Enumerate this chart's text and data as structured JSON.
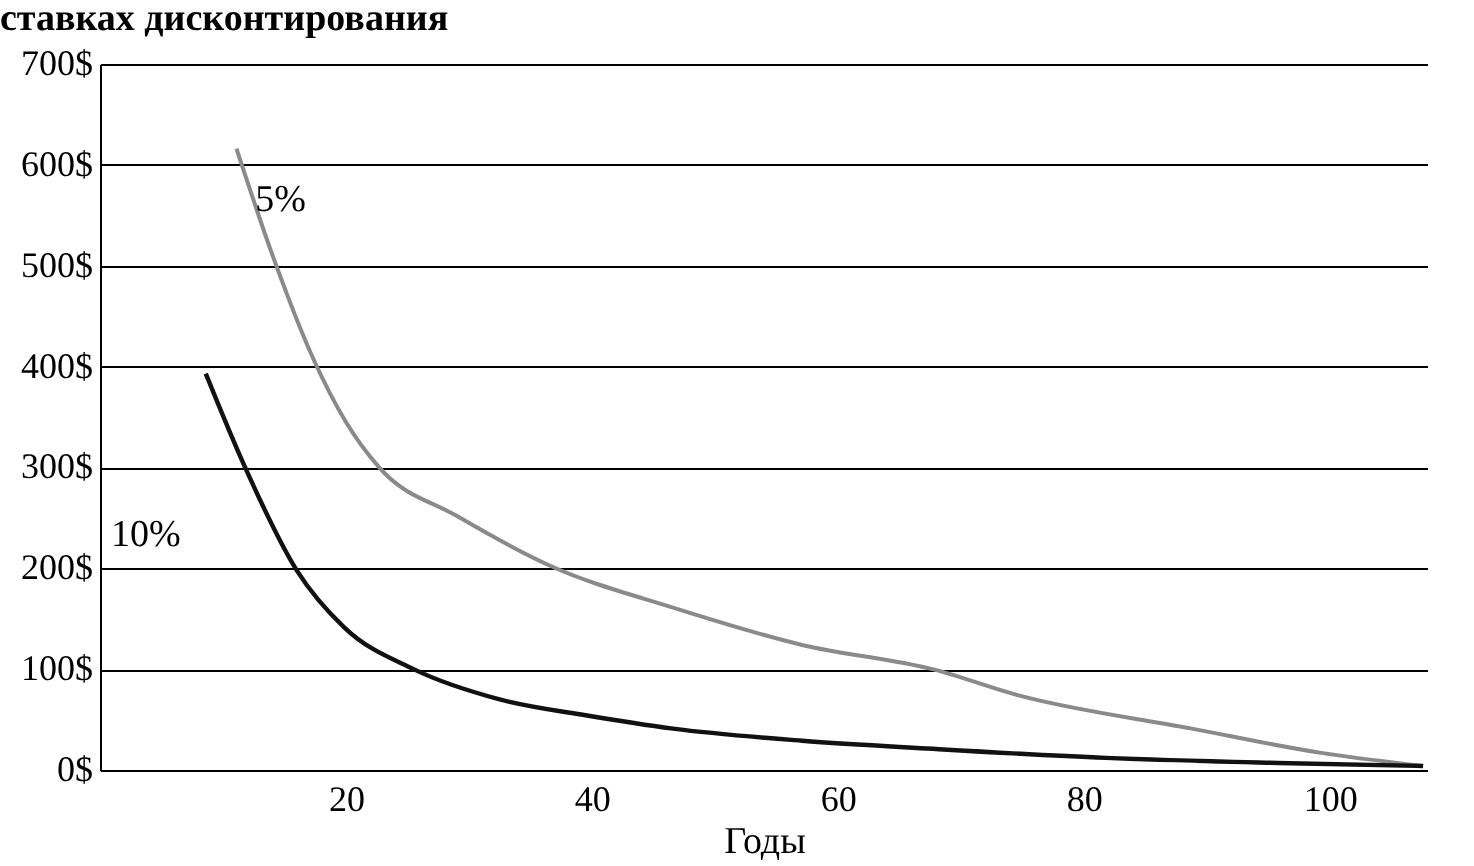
{
  "chart_data": {
    "type": "line",
    "title": "ставках дисконтирования",
    "xlabel": "Годы",
    "xlim": [
      0,
      108
    ],
    "xticks": [
      20,
      40,
      60,
      80,
      100
    ],
    "ylim": [
      0,
      700
    ],
    "yticks": [
      {
        "value": 0,
        "label": "0$"
      },
      {
        "value": 100,
        "label": "100$"
      },
      {
        "value": 200,
        "label": "200$"
      },
      {
        "value": 300,
        "label": "300$"
      },
      {
        "value": 400,
        "label": "400$"
      },
      {
        "value": 500,
        "label": "500$"
      },
      {
        "value": 600,
        "label": "600$"
      },
      {
        "value": 700,
        "label": "700$"
      }
    ],
    "grid": "y",
    "marker": "none",
    "line_style": "solid",
    "series": [
      {
        "name": "5%",
        "color": "#8a8a8a",
        "x": [
          11.1,
          14.1,
          17.3,
          20,
          22.7,
          29,
          36.7,
          46.6,
          57.1,
          67.7,
          74.7,
          88.8,
          99.3,
          107.6
        ],
        "values": [
          616,
          508,
          409,
          345,
          300,
          252,
          202,
          161,
          124,
          100,
          74,
          41,
          17,
          4
        ]
      },
      {
        "name": "10%",
        "color": "#111111",
        "x": [
          8.6,
          11.8,
          16,
          19.9,
          25.5,
          32.5,
          39.6,
          46.6,
          57.1,
          67.7,
          81.8,
          95.8,
          107.6
        ],
        "values": [
          393,
          300,
          198,
          141,
          100,
          70,
          54,
          41,
          29,
          21,
          12,
          7,
          4
        ]
      }
    ]
  }
}
